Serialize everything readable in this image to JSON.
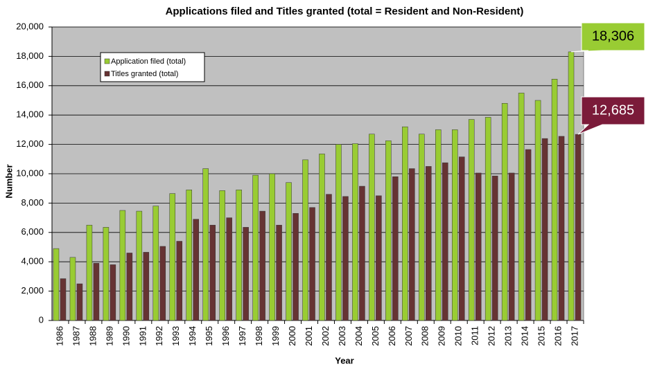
{
  "chart_data": {
    "type": "bar",
    "title": "Applications filed and Titles granted (total = Resident and Non-Resident)",
    "x_label": "Year",
    "y_label": "Number",
    "categories": [
      "1986",
      "1987",
      "1988",
      "1989",
      "1990",
      "1991",
      "1992",
      "1993",
      "1994",
      "1995",
      "1996",
      "1997",
      "1998",
      "1999",
      "2000",
      "2001",
      "2002",
      "2003",
      "2004",
      "2005",
      "2006",
      "2007",
      "2008",
      "2009",
      "2010",
      "2011",
      "2012",
      "2013",
      "2014",
      "2015",
      "2016",
      "2017"
    ],
    "series": [
      {
        "name": "Application filed (total)",
        "color": "#99cc33",
        "values": [
          4900,
          4300,
          6500,
          6350,
          7500,
          7450,
          7800,
          8650,
          8900,
          10350,
          8850,
          8900,
          9900,
          10000,
          9400,
          10950,
          11350,
          12000,
          12050,
          12700,
          12250,
          13200,
          12700,
          13000,
          13000,
          13700,
          13850,
          14800,
          15500,
          15000,
          16450,
          18306
        ],
        "value_labels": [
          null,
          null,
          null,
          null,
          null,
          null,
          null,
          null,
          null,
          null,
          null,
          null,
          null,
          null,
          null,
          null,
          null,
          null,
          null,
          null,
          null,
          null,
          null,
          null,
          null,
          null,
          null,
          null,
          null,
          null,
          null,
          "18,306"
        ]
      },
      {
        "name": "Titles granted (total)",
        "color": "#663333",
        "values": [
          2850,
          2500,
          3900,
          3800,
          4600,
          4650,
          5050,
          5400,
          6900,
          6500,
          7000,
          6350,
          7450,
          6500,
          7300,
          7700,
          8600,
          8450,
          9150,
          8500,
          9800,
          10350,
          10500,
          10750,
          11150,
          10050,
          9850,
          10050,
          11650,
          12400,
          12550,
          12685
        ],
        "value_labels": [
          null,
          null,
          null,
          null,
          null,
          null,
          null,
          null,
          null,
          null,
          null,
          null,
          null,
          null,
          null,
          null,
          null,
          null,
          null,
          null,
          null,
          null,
          null,
          null,
          null,
          null,
          null,
          null,
          null,
          null,
          null,
          "12,685"
        ]
      }
    ],
    "ylim": [
      0,
      20000
    ],
    "yticks": [
      0,
      {
        "value": 2000,
        "label": "2,000"
      },
      {
        "value": 4000,
        "label": "4,000"
      },
      {
        "value": 6000,
        "label": "6,000"
      },
      {
        "value": 8000,
        "label": "8,000"
      },
      {
        "value": 10000,
        "label": "10,000"
      },
      {
        "value": 12000,
        "label": "12,000"
      },
      {
        "value": 14000,
        "label": "14,000"
      },
      {
        "value": 16000,
        "label": "16,000"
      },
      {
        "value": 18000,
        "label": "18,000"
      },
      {
        "value": 20000,
        "label": "20,000"
      }
    ],
    "grid": true,
    "legend": "upper left",
    "plot_background": "#c0c0c0"
  }
}
